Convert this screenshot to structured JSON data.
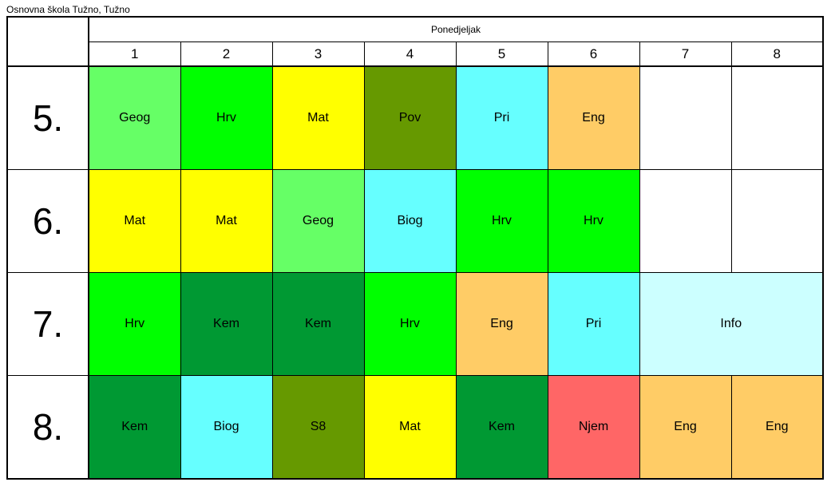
{
  "school": "Osnovna škola Tužno, Tužno",
  "day": "Ponedjeljak",
  "periods": [
    "1",
    "2",
    "3",
    "4",
    "5",
    "6",
    "7",
    "8"
  ],
  "rows": [
    {
      "class": "5.",
      "cells": [
        {
          "text": "Geog",
          "color": "#66ff66"
        },
        {
          "text": "Hrv",
          "color": "#00ff00"
        },
        {
          "text": "Mat",
          "color": "#ffff00"
        },
        {
          "text": "Pov",
          "color": "#669900"
        },
        {
          "text": "Pri",
          "color": "#66ffff"
        },
        {
          "text": "Eng",
          "color": "#ffcc66"
        },
        {
          "text": "",
          "color": "#ffffff"
        },
        {
          "text": "",
          "color": "#ffffff"
        }
      ]
    },
    {
      "class": "6.",
      "cells": [
        {
          "text": "Mat",
          "color": "#ffff00"
        },
        {
          "text": "Mat",
          "color": "#ffff00"
        },
        {
          "text": "Geog",
          "color": "#66ff66"
        },
        {
          "text": "Biog",
          "color": "#66ffff"
        },
        {
          "text": "Hrv",
          "color": "#00ff00"
        },
        {
          "text": "Hrv",
          "color": "#00ff00"
        },
        {
          "text": "",
          "color": "#ffffff"
        },
        {
          "text": "",
          "color": "#ffffff"
        }
      ]
    },
    {
      "class": "7.",
      "cells": [
        {
          "text": "Hrv",
          "color": "#00ff00"
        },
        {
          "text": "Kem",
          "color": "#009933"
        },
        {
          "text": "Kem",
          "color": "#009933"
        },
        {
          "text": "Hrv",
          "color": "#00ff00"
        },
        {
          "text": "Eng",
          "color": "#ffcc66"
        },
        {
          "text": "Pri",
          "color": "#66ffff"
        },
        {
          "text": "Info",
          "color": "#ccffff",
          "span": 2
        }
      ]
    },
    {
      "class": "8.",
      "cells": [
        {
          "text": "Kem",
          "color": "#009933"
        },
        {
          "text": "Biog",
          "color": "#66ffff"
        },
        {
          "text": "S8",
          "color": "#669900"
        },
        {
          "text": "Mat",
          "color": "#ffff00"
        },
        {
          "text": "Kem",
          "color": "#009933"
        },
        {
          "text": "Njem",
          "color": "#ff6666"
        },
        {
          "text": "Eng",
          "color": "#ffcc66"
        },
        {
          "text": "Eng",
          "color": "#ffcc66"
        }
      ]
    }
  ]
}
